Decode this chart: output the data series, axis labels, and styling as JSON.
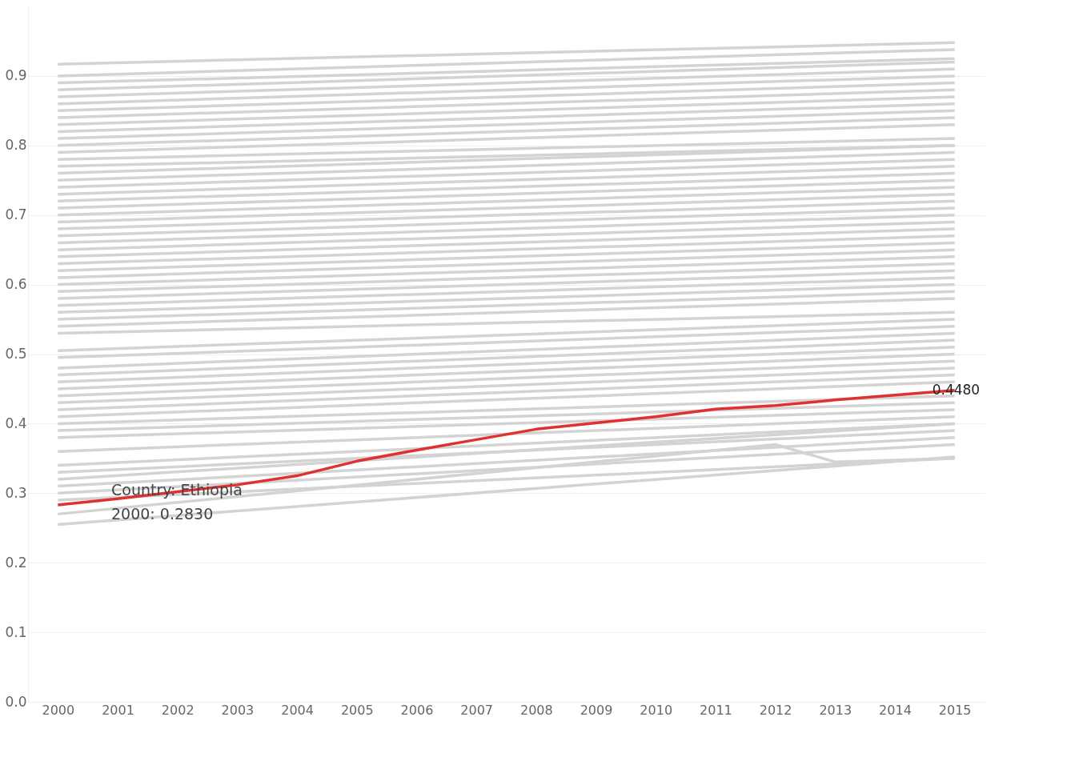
{
  "chart_data": {
    "type": "line",
    "xlim": [
      1999.5,
      2015.5
    ],
    "xticks": [
      2000,
      2001,
      2002,
      2003,
      2004,
      2005,
      2006,
      2007,
      2008,
      2009,
      2010,
      2011,
      2012,
      2013,
      2014,
      2015
    ],
    "ylim": [
      0,
      1.0
    ],
    "yticks": [
      {
        "value": 0,
        "label": "0.0"
      },
      0.1,
      0.2,
      0.3,
      0.4,
      0.5,
      0.6,
      0.7,
      0.8,
      0.9
    ],
    "grid": "y",
    "marker": "none",
    "line_style": "solid",
    "annotations": [
      "Country: Ethiopia",
      "2000: 0.2830"
    ],
    "series": [
      {
        "color": "#d3d3d3",
        "x": [
          2000,
          2015
        ],
        "values": [
          0.917,
          0.948
        ]
      },
      {
        "color": "#d3d3d3",
        "x": [
          2000,
          2015
        ],
        "values": [
          0.9,
          0.938
        ]
      },
      {
        "color": "#d3d3d3",
        "x": [
          2000,
          2015
        ],
        "values": [
          0.89,
          0.925
        ]
      },
      {
        "color": "#d3d3d3",
        "x": [
          2000,
          2015
        ],
        "values": [
          0.88,
          0.92
        ]
      },
      {
        "color": "#d3d3d3",
        "x": [
          2000,
          2015
        ],
        "values": [
          0.87,
          0.91
        ]
      },
      {
        "color": "#d3d3d3",
        "x": [
          2000,
          2015
        ],
        "values": [
          0.86,
          0.9
        ]
      },
      {
        "color": "#d3d3d3",
        "x": [
          2000,
          2015
        ],
        "values": [
          0.85,
          0.89
        ]
      },
      {
        "color": "#d3d3d3",
        "x": [
          2000,
          2015
        ],
        "values": [
          0.84,
          0.88
        ]
      },
      {
        "color": "#d3d3d3",
        "x": [
          2000,
          2015
        ],
        "values": [
          0.83,
          0.87
        ]
      },
      {
        "color": "#d3d3d3",
        "x": [
          2000,
          2015
        ],
        "values": [
          0.82,
          0.86
        ]
      },
      {
        "color": "#d3d3d3",
        "x": [
          2000,
          2015
        ],
        "values": [
          0.81,
          0.85
        ]
      },
      {
        "color": "#d3d3d3",
        "x": [
          2000,
          2015
        ],
        "values": [
          0.8,
          0.84
        ]
      },
      {
        "color": "#d3d3d3",
        "x": [
          2000,
          2015
        ],
        "values": [
          0.79,
          0.83
        ]
      },
      {
        "color": "#d3d3d3",
        "x": [
          2000,
          2015
        ],
        "values": [
          0.78,
          0.81
        ]
      },
      {
        "color": "#d3d3d3",
        "x": [
          2000,
          2015
        ],
        "values": [
          0.77,
          0.8
        ]
      },
      {
        "color": "#d3d3d3",
        "x": [
          2000,
          2015
        ],
        "values": [
          0.76,
          0.8
        ]
      },
      {
        "color": "#d3d3d3",
        "x": [
          2000,
          2015
        ],
        "values": [
          0.75,
          0.79
        ]
      },
      {
        "color": "#d3d3d3",
        "x": [
          2000,
          2015
        ],
        "values": [
          0.74,
          0.78
        ]
      },
      {
        "color": "#d3d3d3",
        "x": [
          2000,
          2015
        ],
        "values": [
          0.73,
          0.77
        ]
      },
      {
        "color": "#d3d3d3",
        "x": [
          2000,
          2015
        ],
        "values": [
          0.72,
          0.76
        ]
      },
      {
        "color": "#d3d3d3",
        "x": [
          2000,
          2015
        ],
        "values": [
          0.71,
          0.75
        ]
      },
      {
        "color": "#d3d3d3",
        "x": [
          2000,
          2015
        ],
        "values": [
          0.7,
          0.74
        ]
      },
      {
        "color": "#d3d3d3",
        "x": [
          2000,
          2015
        ],
        "values": [
          0.69,
          0.73
        ]
      },
      {
        "color": "#d3d3d3",
        "x": [
          2000,
          2015
        ],
        "values": [
          0.68,
          0.72
        ]
      },
      {
        "color": "#d3d3d3",
        "x": [
          2000,
          2015
        ],
        "values": [
          0.67,
          0.71
        ]
      },
      {
        "color": "#d3d3d3",
        "x": [
          2000,
          2015
        ],
        "values": [
          0.66,
          0.7
        ]
      },
      {
        "color": "#d3d3d3",
        "x": [
          2000,
          2015
        ],
        "values": [
          0.65,
          0.69
        ]
      },
      {
        "color": "#d3d3d3",
        "x": [
          2000,
          2015
        ],
        "values": [
          0.64,
          0.68
        ]
      },
      {
        "color": "#d3d3d3",
        "x": [
          2000,
          2015
        ],
        "values": [
          0.63,
          0.67
        ]
      },
      {
        "color": "#d3d3d3",
        "x": [
          2000,
          2015
        ],
        "values": [
          0.62,
          0.66
        ]
      },
      {
        "color": "#d3d3d3",
        "x": [
          2000,
          2015
        ],
        "values": [
          0.61,
          0.65
        ]
      },
      {
        "color": "#d3d3d3",
        "x": [
          2000,
          2015
        ],
        "values": [
          0.6,
          0.64
        ]
      },
      {
        "color": "#d3d3d3",
        "x": [
          2000,
          2015
        ],
        "values": [
          0.59,
          0.63
        ]
      },
      {
        "color": "#d3d3d3",
        "x": [
          2000,
          2015
        ],
        "values": [
          0.58,
          0.62
        ]
      },
      {
        "color": "#d3d3d3",
        "x": [
          2000,
          2015
        ],
        "values": [
          0.57,
          0.61
        ]
      },
      {
        "color": "#d3d3d3",
        "x": [
          2000,
          2015
        ],
        "values": [
          0.56,
          0.6
        ]
      },
      {
        "color": "#d3d3d3",
        "x": [
          2000,
          2015
        ],
        "values": [
          0.55,
          0.59
        ]
      },
      {
        "color": "#d3d3d3",
        "x": [
          2000,
          2015
        ],
        "values": [
          0.54,
          0.58
        ]
      },
      {
        "color": "#d3d3d3",
        "x": [
          2000,
          2015
        ],
        "values": [
          0.53,
          0.56
        ]
      },
      {
        "color": "#d3d3d3",
        "x": [
          2000,
          2015
        ],
        "values": [
          0.505,
          0.55
        ]
      },
      {
        "color": "#d3d3d3",
        "x": [
          2000,
          2015
        ],
        "values": [
          0.495,
          0.54
        ]
      },
      {
        "color": "#d3d3d3",
        "x": [
          2000,
          2015
        ],
        "values": [
          0.48,
          0.53
        ]
      },
      {
        "color": "#d3d3d3",
        "x": [
          2000,
          2015
        ],
        "values": [
          0.47,
          0.52
        ]
      },
      {
        "color": "#d3d3d3",
        "x": [
          2000,
          2015
        ],
        "values": [
          0.46,
          0.51
        ]
      },
      {
        "color": "#d3d3d3",
        "x": [
          2000,
          2015
        ],
        "values": [
          0.45,
          0.5
        ]
      },
      {
        "color": "#d3d3d3",
        "x": [
          2000,
          2015
        ],
        "values": [
          0.44,
          0.49
        ]
      },
      {
        "color": "#d3d3d3",
        "x": [
          2000,
          2015
        ],
        "values": [
          0.43,
          0.48
        ]
      },
      {
        "color": "#d3d3d3",
        "x": [
          2000,
          2015
        ],
        "values": [
          0.42,
          0.47
        ]
      },
      {
        "color": "#d3d3d3",
        "x": [
          2000,
          2015
        ],
        "values": [
          0.41,
          0.46
        ]
      },
      {
        "color": "#d3d3d3",
        "x": [
          2000,
          2015
        ],
        "values": [
          0.4,
          0.44
        ]
      },
      {
        "color": "#d3d3d3",
        "x": [
          2000,
          2015
        ],
        "values": [
          0.39,
          0.43
        ]
      },
      {
        "color": "#d3d3d3",
        "x": [
          2000,
          2015
        ],
        "values": [
          0.38,
          0.42
        ]
      },
      {
        "color": "#d3d3d3",
        "x": [
          2000,
          2015
        ],
        "values": [
          0.36,
          0.41
        ]
      },
      {
        "color": "#d3d3d3",
        "x": [
          2000,
          2015
        ],
        "values": [
          0.34,
          0.4
        ]
      },
      {
        "color": "#d3d3d3",
        "x": [
          2000,
          2015
        ],
        "values": [
          0.33,
          0.39
        ]
      },
      {
        "color": "#d3d3d3",
        "x": [
          2000,
          2015
        ],
        "values": [
          0.32,
          0.4
        ]
      },
      {
        "color": "#d3d3d3",
        "x": [
          2000,
          2015
        ],
        "values": [
          0.31,
          0.38
        ]
      },
      {
        "color": "#d3d3d3",
        "x": [
          2000,
          2015
        ],
        "values": [
          0.3,
          0.37
        ]
      },
      {
        "color": "#d3d3d3",
        "x": [
          2000,
          2015
        ],
        "values": [
          0.29,
          0.35
        ]
      },
      {
        "color": "#d3d3d3",
        "x": [
          2000,
          2012,
          2013,
          2015
        ],
        "values": [
          0.27,
          0.37,
          0.345,
          0.35
        ]
      },
      {
        "color": "#d3d3d3",
        "x": [
          2000,
          2015
        ],
        "values": [
          0.255,
          0.352
        ]
      },
      {
        "color": "#e03131",
        "x": [
          2000,
          2001,
          2002,
          2003,
          2004,
          2005,
          2006,
          2007,
          2008,
          2009,
          2010,
          2011,
          2012,
          2013,
          2014,
          2015
        ],
        "values": [
          0.283,
          0.292,
          0.302,
          0.312,
          0.325,
          0.346,
          0.362,
          0.377,
          0.392,
          0.401,
          0.41,
          0.421,
          0.426,
          0.434,
          0.441,
          0.448
        ],
        "value_labels": [
          null,
          null,
          null,
          null,
          null,
          null,
          null,
          null,
          null,
          null,
          null,
          null,
          null,
          null,
          null,
          "0.4480"
        ]
      }
    ]
  }
}
